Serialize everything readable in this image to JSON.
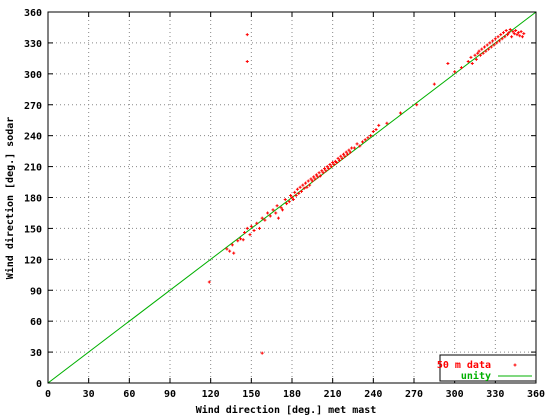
{
  "chart_data": {
    "type": "scatter",
    "title": "",
    "xlabel": "Wind direction [deg.] met mast",
    "ylabel": "Wind direction [deg.] sodar",
    "xlim": [
      0,
      360
    ],
    "ylim": [
      0,
      360
    ],
    "xticks": [
      0,
      30,
      60,
      90,
      120,
      150,
      180,
      210,
      240,
      270,
      300,
      330,
      360
    ],
    "yticks": [
      0,
      30,
      60,
      90,
      120,
      150,
      180,
      210,
      240,
      270,
      300,
      330,
      360
    ],
    "grid": true,
    "legend_position": "bottom-right",
    "series": [
      {
        "name": "50 m data",
        "kind": "points",
        "color": "#ff0000",
        "points": [
          [
            119,
            98
          ],
          [
            147,
            338
          ],
          [
            147,
            312
          ],
          [
            158,
            29
          ],
          [
            132,
            130
          ],
          [
            134,
            128
          ],
          [
            136,
            134
          ],
          [
            137,
            126
          ],
          [
            140,
            138
          ],
          [
            142,
            140
          ],
          [
            144,
            139
          ],
          [
            145,
            146
          ],
          [
            147,
            150
          ],
          [
            149,
            144
          ],
          [
            150,
            152
          ],
          [
            152,
            148
          ],
          [
            154,
            155
          ],
          [
            156,
            150
          ],
          [
            158,
            160
          ],
          [
            160,
            158
          ],
          [
            162,
            165
          ],
          [
            164,
            162
          ],
          [
            166,
            168
          ],
          [
            168,
            165
          ],
          [
            169,
            172
          ],
          [
            170,
            160
          ],
          [
            172,
            170
          ],
          [
            173,
            168
          ],
          [
            175,
            178
          ],
          [
            176,
            174
          ],
          [
            178,
            176
          ],
          [
            179,
            182
          ],
          [
            180,
            180
          ],
          [
            181,
            178
          ],
          [
            182,
            185
          ],
          [
            183,
            182
          ],
          [
            184,
            188
          ],
          [
            185,
            184
          ],
          [
            186,
            190
          ],
          [
            187,
            186
          ],
          [
            188,
            192
          ],
          [
            189,
            189
          ],
          [
            190,
            194
          ],
          [
            191,
            190
          ],
          [
            192,
            196
          ],
          [
            193,
            192
          ],
          [
            194,
            198
          ],
          [
            195,
            196
          ],
          [
            196,
            200
          ],
          [
            197,
            198
          ],
          [
            198,
            202
          ],
          [
            199,
            200
          ],
          [
            200,
            204
          ],
          [
            201,
            201
          ],
          [
            202,
            206
          ],
          [
            203,
            204
          ],
          [
            204,
            208
          ],
          [
            205,
            206
          ],
          [
            206,
            210
          ],
          [
            207,
            208
          ],
          [
            208,
            212
          ],
          [
            209,
            210
          ],
          [
            210,
            214
          ],
          [
            211,
            212
          ],
          [
            212,
            215
          ],
          [
            213,
            214
          ],
          [
            214,
            218
          ],
          [
            215,
            216
          ],
          [
            216,
            220
          ],
          [
            217,
            218
          ],
          [
            218,
            222
          ],
          [
            219,
            220
          ],
          [
            220,
            224
          ],
          [
            221,
            222
          ],
          [
            222,
            226
          ],
          [
            223,
            224
          ],
          [
            224,
            228
          ],
          [
            226,
            228
          ],
          [
            228,
            232
          ],
          [
            230,
            230
          ],
          [
            232,
            234
          ],
          [
            234,
            236
          ],
          [
            236,
            238
          ],
          [
            238,
            240
          ],
          [
            240,
            244
          ],
          [
            242,
            246
          ],
          [
            244,
            250
          ],
          [
            250,
            252
          ],
          [
            260,
            262
          ],
          [
            272,
            270
          ],
          [
            285,
            290
          ],
          [
            295,
            310
          ],
          [
            300,
            302
          ],
          [
            305,
            306
          ],
          [
            310,
            312
          ],
          [
            312,
            316
          ],
          [
            313,
            310
          ],
          [
            315,
            318
          ],
          [
            316,
            314
          ],
          [
            317,
            320
          ],
          [
            318,
            322
          ],
          [
            319,
            318
          ],
          [
            320,
            324
          ],
          [
            321,
            320
          ],
          [
            322,
            326
          ],
          [
            323,
            322
          ],
          [
            324,
            328
          ],
          [
            325,
            324
          ],
          [
            326,
            330
          ],
          [
            327,
            326
          ],
          [
            328,
            332
          ],
          [
            329,
            328
          ],
          [
            330,
            334
          ],
          [
            331,
            330
          ],
          [
            332,
            336
          ],
          [
            333,
            332
          ],
          [
            334,
            338
          ],
          [
            335,
            334
          ],
          [
            336,
            340
          ],
          [
            337,
            336
          ],
          [
            338,
            342
          ],
          [
            339,
            338
          ],
          [
            340,
            340
          ],
          [
            341,
            343
          ],
          [
            342,
            336
          ],
          [
            343,
            341
          ],
          [
            344,
            339
          ],
          [
            345,
            342
          ],
          [
            346,
            338
          ],
          [
            347,
            340
          ],
          [
            348,
            337
          ],
          [
            349,
            341
          ],
          [
            350,
            336
          ],
          [
            351,
            339
          ]
        ]
      },
      {
        "name": "unity",
        "kind": "line",
        "color": "#00b000",
        "x": [
          0,
          360
        ],
        "y": [
          0,
          360
        ]
      }
    ]
  }
}
